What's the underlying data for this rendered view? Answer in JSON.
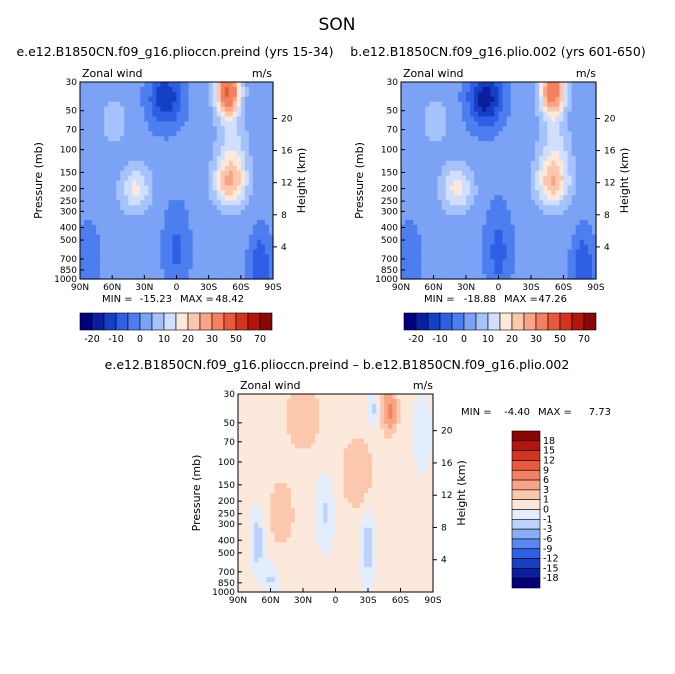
{
  "figure": {
    "title": "SON"
  },
  "chart_data": [
    {
      "type": "heatmap",
      "title": "e.e12.B1850CN.f09_g16.plioccn.preind (yrs 15-34)",
      "left_label": "Zonal wind",
      "right_label": "m/s",
      "ylabel": "Pressure (mb)",
      "ylabel_right": "Height (km)",
      "x_ticks": [
        "90N",
        "60N",
        "30N",
        "0",
        "30S",
        "60S",
        "90S"
      ],
      "y_ticks": [
        "30",
        "50",
        "70",
        "100",
        "150",
        "200",
        "250",
        "300",
        "400",
        "500",
        "700",
        "850",
        "1000"
      ],
      "height_ticks": [
        "20",
        "16",
        "12",
        "8",
        "4"
      ],
      "stats": {
        "min_label": "MIN =",
        "min": "-15.23",
        "max_label": "MAX =",
        "max": "48.42"
      },
      "colorbar_levels": [
        "-20",
        "-10",
        "0",
        "10",
        "20",
        "30",
        "50",
        "70"
      ],
      "field": {
        "base": 2,
        "features": [
          {
            "lat": -50,
            "p": 180,
            "amp": 22,
            "sx": 15,
            "sy": 0.42
          },
          {
            "lat": -48,
            "p": 35,
            "amp": 40,
            "sx": 11,
            "sy": 0.45
          },
          {
            "lat": -52,
            "p": 100,
            "amp": 10,
            "sx": 14,
            "sy": 0.5
          },
          {
            "lat": 38,
            "p": 200,
            "amp": 14,
            "sx": 14,
            "sy": 0.4
          },
          {
            "lat": 58,
            "p": 60,
            "amp": 5,
            "sx": 14,
            "sy": 0.5
          },
          {
            "lat": 10,
            "p": 40,
            "amp": -16,
            "sx": 16,
            "sy": 0.5
          },
          {
            "lat": 0,
            "p": 600,
            "amp": -8,
            "sx": 12,
            "sy": 0.8
          },
          {
            "lat": -78,
            "p": 800,
            "amp": -12,
            "sx": 10,
            "sy": 0.6
          },
          {
            "lat": 82,
            "p": 700,
            "amp": -6,
            "sx": 10,
            "sy": 0.7
          }
        ]
      }
    },
    {
      "type": "heatmap",
      "title": "b.e12.B1850CN.f09_g16.plio.002 (yrs 601-650)",
      "left_label": "Zonal wind",
      "right_label": "m/s",
      "ylabel": "Pressure (mb)",
      "ylabel_right": "Height (km)",
      "x_ticks": [
        "90N",
        "60N",
        "30N",
        "0",
        "30S",
        "60S",
        "90S"
      ],
      "y_ticks": [
        "30",
        "50",
        "70",
        "100",
        "150",
        "200",
        "250",
        "300",
        "400",
        "500",
        "700",
        "850",
        "1000"
      ],
      "height_ticks": [
        "20",
        "16",
        "12",
        "8",
        "4"
      ],
      "stats": {
        "min_label": "MIN =",
        "min": "-18.88",
        "max_label": "MAX =",
        "max": "47.26"
      },
      "colorbar_levels": [
        "-20",
        "-10",
        "0",
        "10",
        "20",
        "30",
        "50",
        "70"
      ],
      "field": {
        "base": 2,
        "features": [
          {
            "lat": -50,
            "p": 180,
            "amp": 21,
            "sx": 15,
            "sy": 0.42
          },
          {
            "lat": -50,
            "p": 35,
            "amp": 36,
            "sx": 11,
            "sy": 0.45
          },
          {
            "lat": -52,
            "p": 100,
            "amp": 10,
            "sx": 14,
            "sy": 0.5
          },
          {
            "lat": 38,
            "p": 200,
            "amp": 15,
            "sx": 14,
            "sy": 0.4
          },
          {
            "lat": 58,
            "p": 60,
            "amp": 5,
            "sx": 14,
            "sy": 0.5
          },
          {
            "lat": 12,
            "p": 40,
            "amp": -20,
            "sx": 16,
            "sy": 0.5
          },
          {
            "lat": 0,
            "p": 600,
            "amp": -9,
            "sx": 12,
            "sy": 0.8
          },
          {
            "lat": -78,
            "p": 800,
            "amp": -12,
            "sx": 10,
            "sy": 0.6
          },
          {
            "lat": 82,
            "p": 700,
            "amp": -6,
            "sx": 10,
            "sy": 0.7
          }
        ]
      }
    },
    {
      "type": "heatmap",
      "title": "e.e12.B1850CN.f09_g16.plioccn.preind – b.e12.B1850CN.f09_g16.plio.002",
      "left_label": "Zonal wind",
      "right_label": "m/s",
      "ylabel": "Pressure (mb)",
      "ylabel_right": "Height (km)",
      "x_ticks": [
        "90N",
        "60N",
        "30N",
        "0",
        "30S",
        "60S",
        "90S"
      ],
      "y_ticks": [
        "30",
        "50",
        "70",
        "100",
        "150",
        "200",
        "250",
        "300",
        "400",
        "500",
        "700",
        "850",
        "1000"
      ],
      "height_ticks": [
        "20",
        "16",
        "12",
        "8",
        "4"
      ],
      "stats": {
        "min_label": "MIN =",
        "min": "-4.40",
        "max_label": "MAX =",
        "max": "7.73"
      },
      "colorbar_levels": [
        "18",
        "15",
        "12",
        "9",
        "6",
        "3",
        "1",
        "0",
        "-1",
        "-3",
        "-6",
        "-9",
        "-12",
        "-15",
        "-18"
      ],
      "field": {
        "base": 0.3,
        "features": [
          {
            "lat": -50,
            "p": 40,
            "amp": 6.5,
            "sx": 6,
            "sy": 0.35
          },
          {
            "lat": 30,
            "p": 45,
            "amp": 2.5,
            "sx": 14,
            "sy": 0.5
          },
          {
            "lat": 50,
            "p": 250,
            "amp": 1.6,
            "sx": 12,
            "sy": 0.6
          },
          {
            "lat": -20,
            "p": 120,
            "amp": 2,
            "sx": 14,
            "sy": 0.6
          },
          {
            "lat": 72,
            "p": 400,
            "amp": -2.2,
            "sx": 6,
            "sy": 0.5
          },
          {
            "lat": 60,
            "p": 800,
            "amp": -1.5,
            "sx": 6,
            "sy": 0.3
          },
          {
            "lat": -30,
            "p": 450,
            "amp": -2.2,
            "sx": 6,
            "sy": 0.6
          },
          {
            "lat": 10,
            "p": 250,
            "amp": -1.4,
            "sx": 8,
            "sy": 0.6
          },
          {
            "lat": -35,
            "p": 40,
            "amp": -1.5,
            "sx": 5,
            "sy": 0.3
          },
          {
            "lat": -80,
            "p": 60,
            "amp": -1.2,
            "sx": 8,
            "sy": 0.6
          }
        ]
      }
    }
  ],
  "palettes": {
    "absolute": [
      "#00007f",
      "#0a1f9e",
      "#153fc4",
      "#2e5fe5",
      "#4d7ef0",
      "#7ba2f5",
      "#a6c2fa",
      "#cfdffd",
      "#fde9dc",
      "#fcc8ad",
      "#f9a484",
      "#f3805f",
      "#e95a3c",
      "#d3341f",
      "#b5150f",
      "#8a0707"
    ],
    "difference": [
      "#00007f",
      "#0a1f9e",
      "#153fc4",
      "#2e5fe5",
      "#5a86f0",
      "#8aaef6",
      "#bcd2fb",
      "#e4edfd",
      "#fde9dc",
      "#fcc8ad",
      "#f9a484",
      "#f3805f",
      "#e95a3c",
      "#d3341f",
      "#b5150f",
      "#8a0707"
    ]
  }
}
